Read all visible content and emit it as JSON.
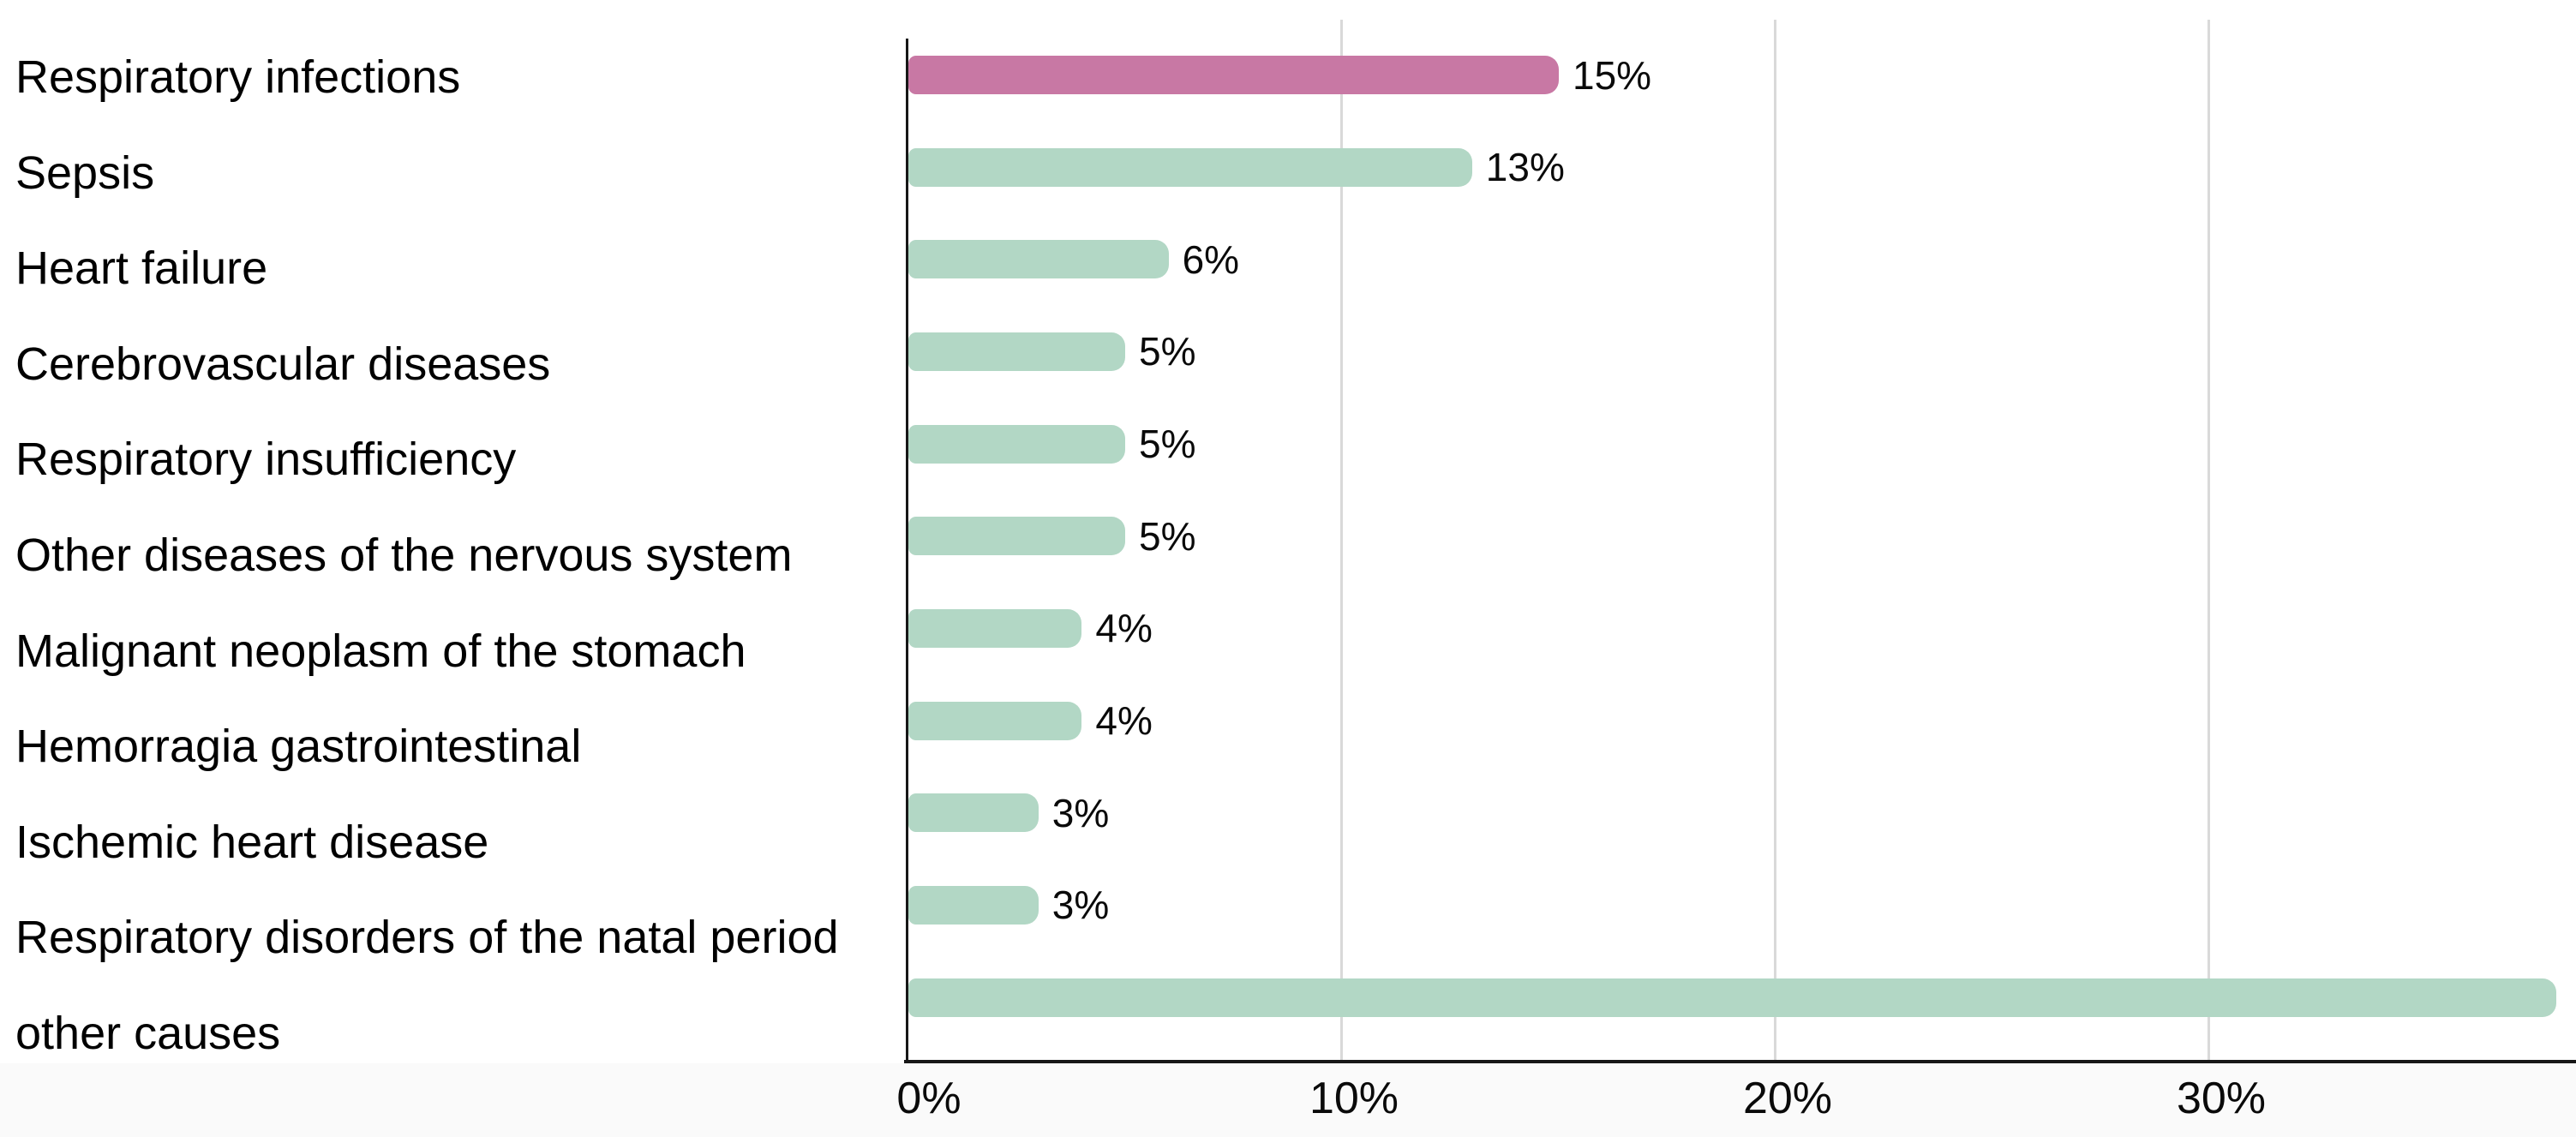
{
  "chart_data": {
    "type": "bar",
    "orientation": "horizontal",
    "title": "",
    "xlabel": "",
    "ylabel": "",
    "grid": "vertical-gridlines-on",
    "legend": "none",
    "categories": [
      "Respiratory infections",
      "Sepsis",
      "Heart failure",
      "Cerebrovascular diseases",
      "Respiratory insufficiency",
      "Other diseases of the nervous system",
      "Malignant neoplasm of the stomach",
      "Hemorragia gastrointestinal",
      "Ischemic heart disease",
      "Respiratory disorders of the natal period",
      "other causes"
    ],
    "values": [
      15,
      13,
      6,
      5,
      5,
      5,
      4,
      4,
      3,
      3,
      38
    ],
    "value_labels": [
      "15%",
      "13%",
      "6%",
      "5%",
      "5%",
      "5%",
      "4%",
      "4%",
      "3%",
      "3%",
      ""
    ],
    "highlight_index": 0,
    "x_axis": {
      "tick_values": [
        0,
        10,
        20,
        30
      ],
      "tick_labels": [
        "0%",
        "10%",
        "20%",
        "30%"
      ],
      "range": [
        0,
        38.5
      ]
    },
    "colors": {
      "highlight_bar": "#c878a4",
      "default_bar": "#b2d7c5",
      "gridline": "#d9d9d9",
      "axis_line": "#171717",
      "text": "#0a0a0a",
      "background": "#ffffff",
      "below_axis_background": "#fafafa"
    }
  }
}
